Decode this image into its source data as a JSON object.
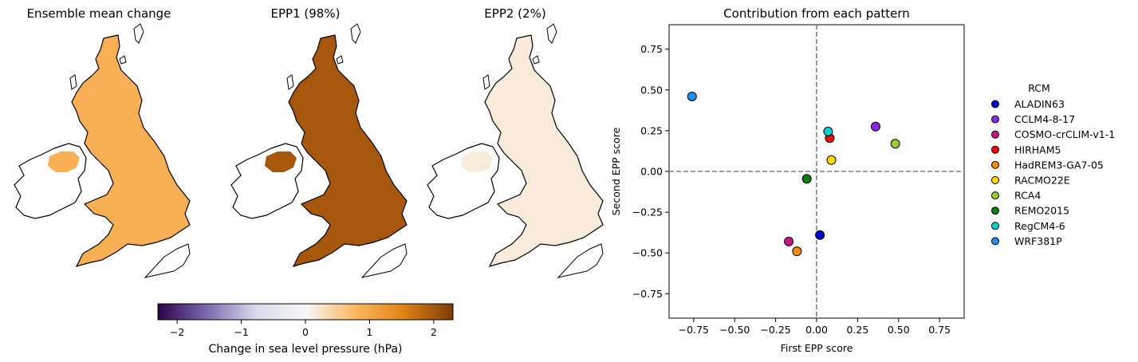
{
  "maps": [
    {
      "title": "Ensemble mean change",
      "value": 0.9
    },
    {
      "title": "EPP1 (98%)",
      "value": 2.0
    },
    {
      "title": "EPP2 (2%)",
      "value": 0.15
    }
  ],
  "colorbar": {
    "label": "Change in sea level pressure (hPa)",
    "range": [
      -2.3,
      2.3
    ],
    "ticks": [
      -2,
      -1,
      0,
      1,
      2
    ],
    "tick_labels": [
      "−2",
      "−1",
      "0",
      "1",
      "2"
    ],
    "colors": [
      "#2d004b",
      "#7b6bb0",
      "#d8daeb",
      "#f7f7f7",
      "#fdb863",
      "#e08214",
      "#7f3b08"
    ]
  },
  "chart_data": {
    "type": "scatter",
    "title": "Contribution from each pattern",
    "xlabel": "First EPP score",
    "ylabel": "Second EPP score",
    "xlim": [
      -0.9,
      0.9
    ],
    "ylim": [
      -0.9,
      0.9
    ],
    "xticks": [
      -0.75,
      -0.5,
      -0.25,
      0.0,
      0.25,
      0.5,
      0.75
    ],
    "xtick_labels": [
      "−0.75",
      "−0.50",
      "−0.25",
      "0.00",
      "0.25",
      "0.50",
      "0.75"
    ],
    "yticks": [
      -0.75,
      -0.5,
      -0.25,
      0.0,
      0.25,
      0.5,
      0.75
    ],
    "ytick_labels": [
      "−0.75",
      "−0.50",
      "−0.25",
      "0.00",
      "0.25",
      "0.50",
      "0.75"
    ],
    "reference_lines": {
      "x": 0,
      "y": 0,
      "style": "dashed"
    },
    "legend": {
      "title": "RCM",
      "placement": "outside-right"
    },
    "series": [
      {
        "name": "ALADIN63",
        "color": "#0000cd",
        "x": 0.02,
        "y": -0.39
      },
      {
        "name": "CCLM4-8-17",
        "color": "#8a2be2",
        "x": 0.36,
        "y": 0.275
      },
      {
        "name": "COSMO-crCLIM-v1-1",
        "color": "#c71585",
        "x": -0.17,
        "y": -0.43
      },
      {
        "name": "HIRHAM5",
        "color": "#ff0000",
        "x": 0.08,
        "y": 0.205
      },
      {
        "name": "HadREM3-GA7-05",
        "color": "#ff8c00",
        "x": -0.12,
        "y": -0.49
      },
      {
        "name": "RACMO22E",
        "color": "#ffd700",
        "x": 0.09,
        "y": 0.07
      },
      {
        "name": "RCA4",
        "color": "#9acd32",
        "x": 0.48,
        "y": 0.17
      },
      {
        "name": "REMO2015",
        "color": "#008000",
        "x": -0.06,
        "y": -0.045
      },
      {
        "name": "RegCM4-6",
        "color": "#00ced1",
        "x": 0.07,
        "y": 0.245
      },
      {
        "name": "WRF381P",
        "color": "#1e90ff",
        "x": -0.76,
        "y": 0.46
      }
    ]
  }
}
